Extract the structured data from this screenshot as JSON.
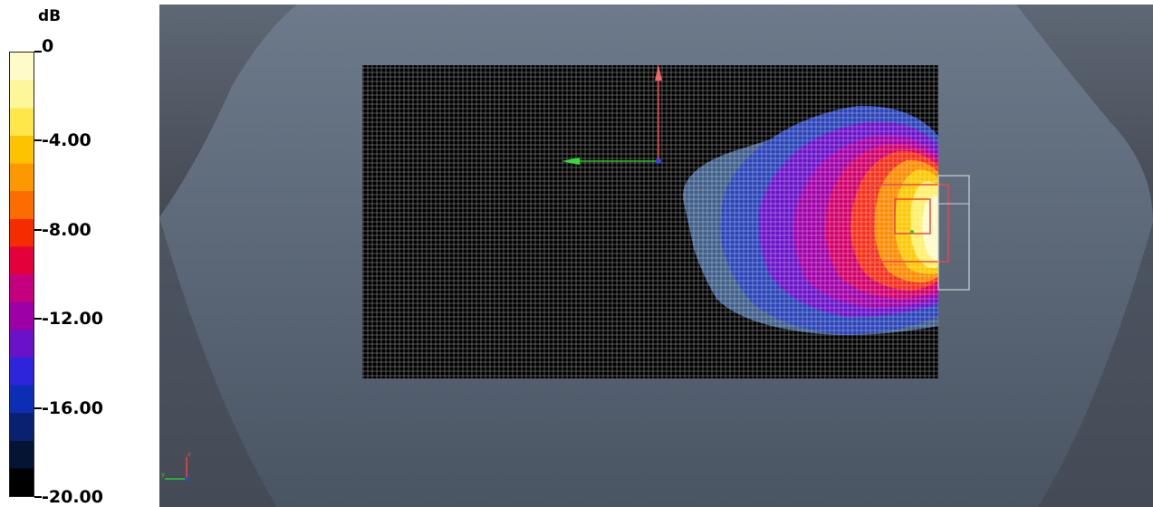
{
  "legend": {
    "unit": "dB",
    "ticks": [
      "0",
      "-4.00",
      "-8.00",
      "-12.00",
      "-16.00",
      "-20.00"
    ],
    "range": [
      -20,
      0
    ],
    "colors": [
      "#fefbc8",
      "#fef799",
      "#fde74a",
      "#fdc300",
      "#fd9900",
      "#fd6c00",
      "#f52c00",
      "#e4003b",
      "#c4007f",
      "#9d00a6",
      "#6a12c8",
      "#2c25dc",
      "#0b2eb4",
      "#0a2070",
      "#041433",
      "#000000"
    ]
  },
  "viewport": {
    "background_color": "#6b7788",
    "scan_grid": {
      "rows": 70,
      "cols": 127,
      "grid_color": "#ffffff",
      "background": "#000000"
    },
    "axes": {
      "x_color": "#22cc22",
      "y_color": "#ee4444",
      "z_color": "#3344ee"
    }
  }
}
